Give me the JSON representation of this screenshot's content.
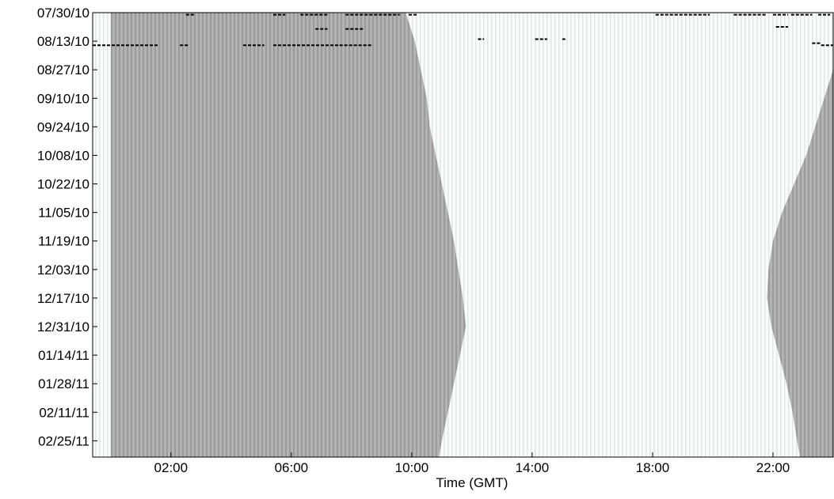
{
  "chart_data": {
    "type": "heatmap",
    "xlabel": "Time (GMT)",
    "ylabel": "",
    "title": "",
    "x_unit": "hours GMT",
    "xlim": [
      -0.6,
      24.0
    ],
    "x_ticks": [
      {
        "value": 2,
        "label": "02:00"
      },
      {
        "value": 6,
        "label": "06:00"
      },
      {
        "value": 10,
        "label": "10:00"
      },
      {
        "value": 14,
        "label": "14:00"
      },
      {
        "value": 18,
        "label": "18:00"
      },
      {
        "value": 22,
        "label": "22:00"
      }
    ],
    "y_unit": "date",
    "ylim": [
      "2010-07-30",
      "2011-03-05"
    ],
    "y_ticks": [
      {
        "value": "2010-07-30",
        "label": "07/30/10"
      },
      {
        "value": "2010-08-13",
        "label": "08/13/10"
      },
      {
        "value": "2010-08-27",
        "label": "08/27/10"
      },
      {
        "value": "2010-09-10",
        "label": "09/10/10"
      },
      {
        "value": "2010-09-24",
        "label": "09/24/10"
      },
      {
        "value": "2010-10-08",
        "label": "10/08/10"
      },
      {
        "value": "2010-10-22",
        "label": "10/22/10"
      },
      {
        "value": "2010-11-05",
        "label": "11/05/10"
      },
      {
        "value": "2010-11-19",
        "label": "11/19/10"
      },
      {
        "value": "2010-12-03",
        "label": "12/03/10"
      },
      {
        "value": "2010-12-17",
        "label": "12/17/10"
      },
      {
        "value": "2010-12-31",
        "label": "12/31/10"
      },
      {
        "value": "2011-01-14",
        "label": "01/14/11"
      },
      {
        "value": "2011-01-28",
        "label": "01/28/11"
      },
      {
        "value": "2011-02-11",
        "label": "02/11/11"
      },
      {
        "value": "2011-02-25",
        "label": "02/25/11"
      }
    ],
    "colors": {
      "night": "#b3b3b3",
      "night_stripe": "#9a9a9a",
      "day": "#fafcfc",
      "day_stripe": "#dfe8e8",
      "events": "#000000",
      "axis": "#000000"
    },
    "night_regions": [
      {
        "name": "",
        "edge": "sunrise",
        "fills_from": 0,
        "boundary": [
          {
            "date": "2010-07-30",
            "x": 9.8
          },
          {
            "date": "2010-08-13",
            "x": 10.1
          },
          {
            "date": "2010-08-27",
            "x": 10.3
          },
          {
            "date": "2010-09-10",
            "x": 10.5
          },
          {
            "date": "2010-09-24",
            "x": 10.6
          },
          {
            "date": "2010-10-08",
            "x": 10.8
          },
          {
            "date": "2010-10-22",
            "x": 11.0
          },
          {
            "date": "2010-11-05",
            "x": 11.2
          },
          {
            "date": "2010-11-19",
            "x": 11.4
          },
          {
            "date": "2010-12-03",
            "x": 11.55
          },
          {
            "date": "2010-12-17",
            "x": 11.7
          },
          {
            "date": "2010-12-31",
            "x": 11.8
          },
          {
            "date": "2011-01-14",
            "x": 11.6
          },
          {
            "date": "2011-01-28",
            "x": 11.4
          },
          {
            "date": "2011-02-11",
            "x": 11.2
          },
          {
            "date": "2011-02-25",
            "x": 11.0
          },
          {
            "date": "2011-03-05",
            "x": 10.9
          }
        ]
      },
      {
        "name": "",
        "edge": "sunset",
        "fills_to": 24,
        "boundary": [
          {
            "date": "2010-07-30",
            "x": 24.0
          },
          {
            "date": "2010-08-27",
            "x": 24.0
          },
          {
            "date": "2010-09-10",
            "x": 23.7
          },
          {
            "date": "2010-09-24",
            "x": 23.4
          },
          {
            "date": "2010-10-08",
            "x": 23.1
          },
          {
            "date": "2010-10-22",
            "x": 22.7
          },
          {
            "date": "2010-11-05",
            "x": 22.3
          },
          {
            "date": "2010-11-19",
            "x": 22.0
          },
          {
            "date": "2010-12-03",
            "x": 21.85
          },
          {
            "date": "2010-12-17",
            "x": 21.8
          },
          {
            "date": "2010-12-31",
            "x": 21.95
          },
          {
            "date": "2011-01-14",
            "x": 22.2
          },
          {
            "date": "2011-01-28",
            "x": 22.45
          },
          {
            "date": "2011-02-11",
            "x": 22.65
          },
          {
            "date": "2011-02-25",
            "x": 22.8
          },
          {
            "date": "2011-03-05",
            "x": 22.9
          }
        ]
      }
    ],
    "events": [
      {
        "date": "2010-07-31",
        "start": 2.5,
        "end": 2.8
      },
      {
        "date": "2010-07-31",
        "start": 5.4,
        "end": 5.8
      },
      {
        "date": "2010-07-31",
        "start": 6.3,
        "end": 7.2
      },
      {
        "date": "2010-07-31",
        "start": 7.8,
        "end": 9.6
      },
      {
        "date": "2010-07-31",
        "start": 9.9,
        "end": 10.2
      },
      {
        "date": "2010-07-31",
        "start": 18.1,
        "end": 19.9
      },
      {
        "date": "2010-07-31",
        "start": 20.7,
        "end": 21.8
      },
      {
        "date": "2010-07-31",
        "start": 22.0,
        "end": 22.5
      },
      {
        "date": "2010-07-31",
        "start": 22.6,
        "end": 23.3
      },
      {
        "date": "2010-07-31",
        "start": 23.5,
        "end": 23.9
      },
      {
        "date": "2010-08-07",
        "start": 6.8,
        "end": 7.2
      },
      {
        "date": "2010-08-07",
        "start": 7.8,
        "end": 8.4
      },
      {
        "date": "2010-08-06",
        "start": 22.1,
        "end": 22.5
      },
      {
        "date": "2010-08-12",
        "start": 12.2,
        "end": 12.4
      },
      {
        "date": "2010-08-12",
        "start": 14.1,
        "end": 14.5
      },
      {
        "date": "2010-08-12",
        "start": 15.0,
        "end": 15.1
      },
      {
        "date": "2010-08-14",
        "start": 23.3,
        "end": 23.6
      },
      {
        "date": "2010-08-15",
        "start": -0.6,
        "end": 1.6
      },
      {
        "date": "2010-08-15",
        "start": 2.3,
        "end": 2.6
      },
      {
        "date": "2010-08-15",
        "start": 4.4,
        "end": 5.1
      },
      {
        "date": "2010-08-15",
        "start": 5.4,
        "end": 7.6
      },
      {
        "date": "2010-08-15",
        "start": 7.6,
        "end": 8.7
      },
      {
        "date": "2010-08-15",
        "start": 23.6,
        "end": 24.0
      }
    ]
  }
}
